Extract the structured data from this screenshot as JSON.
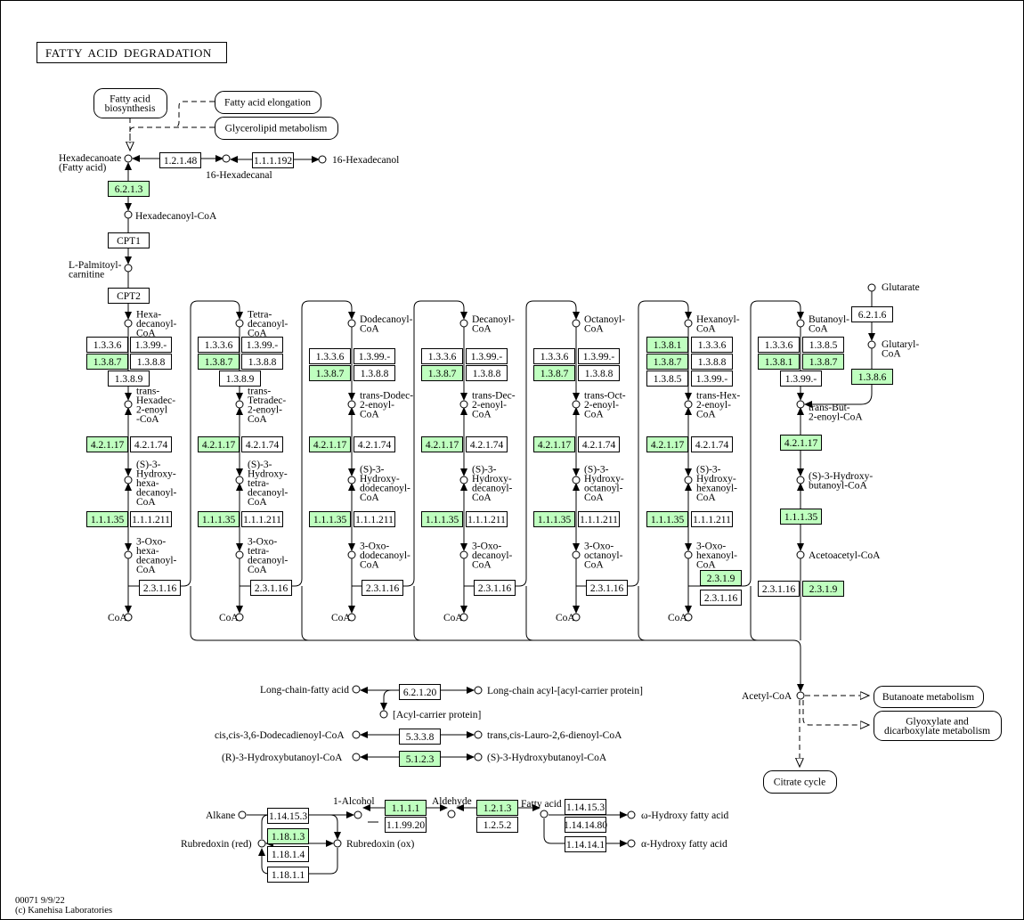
{
  "title": "FATTY ACID DEGRADATION",
  "footer": {
    "id_date": "00071 9/9/22",
    "copyright": "(c) Kanehisa Laboratories"
  },
  "colors": {
    "highlighted_enzyme": "#bfffbf",
    "enzyme": "#ffffff",
    "line": "#000000"
  },
  "maps": [
    "Fatty acid\nbiosynthesis",
    "Fatty acid elongation",
    "Glycerolipid metabolism",
    "Butanoate metabolism",
    "Glyoxylate and\ndicarboxylate metabolism",
    "Citrate cycle"
  ],
  "enzymes": {
    "top": [
      {
        "label": "1.2.1.48",
        "highlighted": false
      },
      {
        "label": "1.1.1.192",
        "highlighted": false
      },
      {
        "label": "6.2.1.3",
        "highlighted": true
      },
      {
        "label": "CPT1",
        "highlighted": false
      },
      {
        "label": "CPT2",
        "highlighted": false
      }
    ],
    "columns": [
      [
        {
          "label": "1.3.3.6",
          "highlighted": false
        },
        {
          "label": "1.3.99.-",
          "highlighted": false
        },
        {
          "label": "1.3.8.7",
          "highlighted": true
        },
        {
          "label": "1.3.8.8",
          "highlighted": false
        },
        {
          "label": "1.3.8.9",
          "highlighted": false
        },
        {
          "label": "4.2.1.17",
          "highlighted": true
        },
        {
          "label": "4.2.1.74",
          "highlighted": false
        },
        {
          "label": "1.1.1.35",
          "highlighted": true
        },
        {
          "label": "1.1.1.211",
          "highlighted": false
        },
        {
          "label": "2.3.1.16",
          "highlighted": false
        }
      ],
      [
        {
          "label": "1.3.3.6",
          "highlighted": false
        },
        {
          "label": "1.3.99.-",
          "highlighted": false
        },
        {
          "label": "1.3.8.7",
          "highlighted": true
        },
        {
          "label": "1.3.8.8",
          "highlighted": false
        },
        {
          "label": "1.3.8.9",
          "highlighted": false
        },
        {
          "label": "4.2.1.17",
          "highlighted": true
        },
        {
          "label": "4.2.1.74",
          "highlighted": false
        },
        {
          "label": "1.1.1.35",
          "highlighted": true
        },
        {
          "label": "1.1.1.211",
          "highlighted": false
        },
        {
          "label": "2.3.1.16",
          "highlighted": false
        }
      ],
      [
        {
          "label": "1.3.3.6",
          "highlighted": false
        },
        {
          "label": "1.3.99.-",
          "highlighted": false
        },
        {
          "label": "1.3.8.7",
          "highlighted": true
        },
        {
          "label": "1.3.8.8",
          "highlighted": false
        },
        {
          "label": "4.2.1.17",
          "highlighted": true
        },
        {
          "label": "4.2.1.74",
          "highlighted": false
        },
        {
          "label": "1.1.1.35",
          "highlighted": true
        },
        {
          "label": "1.1.1.211",
          "highlighted": false
        },
        {
          "label": "2.3.1.16",
          "highlighted": false
        }
      ],
      [
        {
          "label": "1.3.3.6",
          "highlighted": false
        },
        {
          "label": "1.3.99.-",
          "highlighted": false
        },
        {
          "label": "1.3.8.7",
          "highlighted": true
        },
        {
          "label": "1.3.8.8",
          "highlighted": false
        },
        {
          "label": "4.2.1.17",
          "highlighted": true
        },
        {
          "label": "4.2.1.74",
          "highlighted": false
        },
        {
          "label": "1.1.1.35",
          "highlighted": true
        },
        {
          "label": "1.1.1.211",
          "highlighted": false
        },
        {
          "label": "2.3.1.16",
          "highlighted": false
        }
      ],
      [
        {
          "label": "1.3.3.6",
          "highlighted": false
        },
        {
          "label": "1.3.99.-",
          "highlighted": false
        },
        {
          "label": "1.3.8.7",
          "highlighted": true
        },
        {
          "label": "1.3.8.8",
          "highlighted": false
        },
        {
          "label": "4.2.1.17",
          "highlighted": true
        },
        {
          "label": "4.2.1.74",
          "highlighted": false
        },
        {
          "label": "1.1.1.35",
          "highlighted": true
        },
        {
          "label": "1.1.1.211",
          "highlighted": false
        },
        {
          "label": "2.3.1.16",
          "highlighted": false
        }
      ],
      [
        {
          "label": "1.3.8.1",
          "highlighted": true
        },
        {
          "label": "1.3.3.6",
          "highlighted": false
        },
        {
          "label": "1.3.8.7",
          "highlighted": true
        },
        {
          "label": "1.3.8.8",
          "highlighted": false
        },
        {
          "label": "1.3.8.5",
          "highlighted": false
        },
        {
          "label": "1.3.99.-",
          "highlighted": false
        },
        {
          "label": "4.2.1.17",
          "highlighted": true
        },
        {
          "label": "4.2.1.74",
          "highlighted": false
        },
        {
          "label": "1.1.1.35",
          "highlighted": true
        },
        {
          "label": "1.1.1.211",
          "highlighted": false
        },
        {
          "label": "2.3.1.9",
          "highlighted": true
        },
        {
          "label": "2.3.1.16",
          "highlighted": false
        }
      ],
      [
        {
          "label": "1.3.3.6",
          "highlighted": false
        },
        {
          "label": "1.3.8.5",
          "highlighted": false
        },
        {
          "label": "1.3.8.1",
          "highlighted": true
        },
        {
          "label": "1.3.8.7",
          "highlighted": true
        },
        {
          "label": "1.3.99.-",
          "highlighted": false
        },
        {
          "label": "6.2.1.6",
          "highlighted": false
        },
        {
          "label": "1.3.8.6",
          "highlighted": true
        },
        {
          "label": "4.2.1.17",
          "highlighted": true
        },
        {
          "label": "1.1.1.35",
          "highlighted": true
        },
        {
          "label": "2.3.1.16",
          "highlighted": false
        },
        {
          "label": "2.3.1.9",
          "highlighted": true
        }
      ]
    ],
    "middle": [
      {
        "label": "6.2.1.20",
        "highlighted": false
      },
      {
        "label": "5.3.3.8",
        "highlighted": false
      },
      {
        "label": "5.1.2.3",
        "highlighted": true
      }
    ],
    "bottom": [
      {
        "label": "1.14.15.3",
        "highlighted": false
      },
      {
        "label": "1.18.1.3",
        "highlighted": true
      },
      {
        "label": "1.18.1.4",
        "highlighted": false
      },
      {
        "label": "1.18.1.1",
        "highlighted": false
      },
      {
        "label": "1.1.1.1",
        "highlighted": true
      },
      {
        "label": "1.1.99.20",
        "highlighted": false
      },
      {
        "label": "1.2.1.3",
        "highlighted": true
      },
      {
        "label": "1.2.5.2",
        "highlighted": false
      },
      {
        "label": "1.14.15.3",
        "highlighted": false
      },
      {
        "label": "1.14.14.80",
        "highlighted": false
      },
      {
        "label": "1.14.14.1",
        "highlighted": false
      }
    ]
  },
  "compounds": {
    "top": [
      "Hexadecanoate\n(Fatty acid)",
      "16-Hexadecanal",
      "16-Hexadecanol",
      "Hexadecanoyl-CoA",
      "L-Palmitoyl-\ncarnitine"
    ],
    "columns": [
      [
        "Hexa-\ndecanoyl-\nCoA",
        "trans-\nHexadec-\n2-enoyl\n-CoA",
        "(S)-3-\nHydroxy-\nhexa-\ndecanoyl-\nCoA",
        "3-Oxo-\nhexa-\ndecanoyl-\nCoA",
        "CoA"
      ],
      [
        "Tetra-\ndecanoyl-\nCoA",
        "trans-\nTetradec-\n2-enoyl-\nCoA",
        "(S)-3-\nHydroxy-\ntetra-\ndecanoyl-\nCoA",
        "3-Oxo-\ntetra-\ndecanoyl-\nCoA",
        "CoA"
      ],
      [
        "Dodecanoyl-\nCoA",
        "trans-Dodec-\n2-enoyl-\nCoA",
        "(S)-3-\nHydroxy-\ndodecanoyl-\nCoA",
        "3-Oxo-\ndodecanoyl-\nCoA",
        "CoA"
      ],
      [
        "Decanoyl-\nCoA",
        "trans-Dec-\n2-enoyl-\nCoA",
        "(S)-3-\nHydroxy-\ndecanoyl-\nCoA",
        "3-Oxo-\ndecanoyl-\nCoA",
        "CoA"
      ],
      [
        "Octanoyl-\nCoA",
        "trans-Oct-\n2-enoyl-\nCoA",
        "(S)-3-\nHydroxy-\noctanoyl-\nCoA",
        "3-Oxo-\noctanoyl-\nCoA",
        "CoA"
      ],
      [
        "Hexanoyl-\nCoA",
        "trans-Hex-\n2-enoyl-\nCoA",
        "(S)-3-\nHydroxy-\nhexanoyl-\nCoA",
        "3-Oxo-\nhexanoyl-\nCoA",
        "CoA"
      ],
      [
        "Butanoyl-\nCoA",
        "trans-But-\n2-enoyl-CoA",
        "(S)-3-Hydroxy-\nbutanoyl-CoA",
        "Acetoacetyl-CoA",
        "Glutarate",
        "Glutaryl-\nCoA",
        "Acetyl-CoA"
      ]
    ],
    "middle": [
      "Long-chain-fatty acid",
      "Long-chain acyl-[acyl-carrier protein]",
      "[Acyl-carrier protein]",
      "cis,cis-3,6-Dodecadienoyl-CoA",
      "trans,cis-Lauro-2,6-dienoyl-CoA",
      "(R)-3-Hydroxybutanoyl-CoA",
      "(S)-3-Hydroxybutanoyl-CoA"
    ],
    "bottom": [
      "Alkane",
      "1-Alcohol",
      "Rubredoxin (red)",
      "Rubredoxin (ox)",
      "Aldehyde",
      "Fatty acid",
      "ω-Hydroxy fatty acid",
      "α-Hydroxy fatty acid"
    ]
  }
}
